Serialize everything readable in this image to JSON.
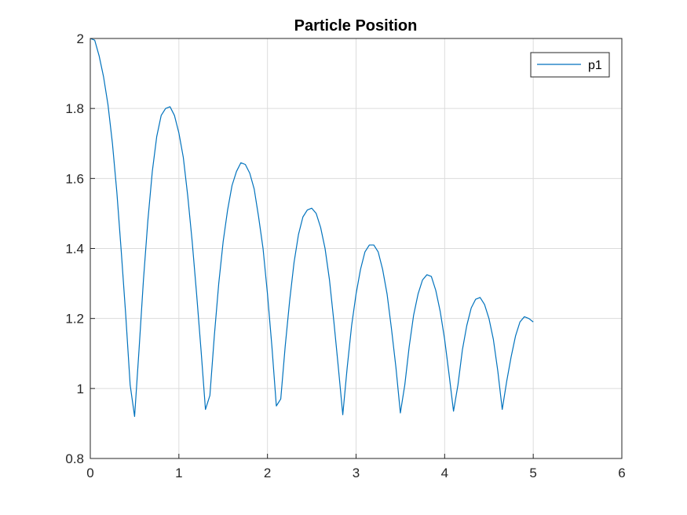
{
  "chart_data": {
    "type": "line",
    "title": "Particle Position",
    "xlabel": "",
    "ylabel": "",
    "xlim": [
      0,
      6
    ],
    "ylim": [
      0.8,
      2
    ],
    "xticks": [
      "0",
      "1",
      "2",
      "3",
      "4",
      "5",
      "6"
    ],
    "yticks": [
      "0.8",
      "1",
      "1.2",
      "1.4",
      "1.6",
      "1.8",
      "2"
    ],
    "grid": true,
    "legend": {
      "position": "top-right",
      "entries": [
        "p1"
      ]
    },
    "series": [
      {
        "name": "p1",
        "color": "#0072BD",
        "points": [
          [
            0.0,
            2.0
          ],
          [
            0.05,
            1.995
          ],
          [
            0.1,
            1.95
          ],
          [
            0.15,
            1.89
          ],
          [
            0.2,
            1.81
          ],
          [
            0.25,
            1.7
          ],
          [
            0.3,
            1.56
          ],
          [
            0.35,
            1.39
          ],
          [
            0.4,
            1.21
          ],
          [
            0.45,
            1.01
          ],
          [
            0.5,
            0.92
          ],
          [
            0.55,
            1.11
          ],
          [
            0.6,
            1.31
          ],
          [
            0.65,
            1.48
          ],
          [
            0.7,
            1.62
          ],
          [
            0.75,
            1.72
          ],
          [
            0.8,
            1.78
          ],
          [
            0.85,
            1.8
          ],
          [
            0.9,
            1.805
          ],
          [
            0.95,
            1.78
          ],
          [
            1.0,
            1.73
          ],
          [
            1.05,
            1.66
          ],
          [
            1.1,
            1.55
          ],
          [
            1.15,
            1.42
          ],
          [
            1.2,
            1.27
          ],
          [
            1.25,
            1.11
          ],
          [
            1.3,
            0.94
          ],
          [
            1.35,
            0.98
          ],
          [
            1.4,
            1.15
          ],
          [
            1.45,
            1.3
          ],
          [
            1.5,
            1.42
          ],
          [
            1.55,
            1.51
          ],
          [
            1.6,
            1.58
          ],
          [
            1.65,
            1.62
          ],
          [
            1.7,
            1.645
          ],
          [
            1.75,
            1.64
          ],
          [
            1.8,
            1.615
          ],
          [
            1.85,
            1.57
          ],
          [
            1.9,
            1.49
          ],
          [
            1.95,
            1.4
          ],
          [
            2.0,
            1.27
          ],
          [
            2.05,
            1.12
          ],
          [
            2.1,
            0.95
          ],
          [
            2.15,
            0.97
          ],
          [
            2.2,
            1.12
          ],
          [
            2.25,
            1.25
          ],
          [
            2.3,
            1.36
          ],
          [
            2.35,
            1.44
          ],
          [
            2.4,
            1.49
          ],
          [
            2.45,
            1.51
          ],
          [
            2.5,
            1.515
          ],
          [
            2.55,
            1.5
          ],
          [
            2.6,
            1.46
          ],
          [
            2.65,
            1.4
          ],
          [
            2.7,
            1.31
          ],
          [
            2.75,
            1.19
          ],
          [
            2.8,
            1.06
          ],
          [
            2.85,
            0.925
          ],
          [
            2.9,
            1.06
          ],
          [
            2.95,
            1.18
          ],
          [
            3.0,
            1.27
          ],
          [
            3.05,
            1.34
          ],
          [
            3.1,
            1.39
          ],
          [
            3.15,
            1.41
          ],
          [
            3.2,
            1.41
          ],
          [
            3.25,
            1.39
          ],
          [
            3.3,
            1.34
          ],
          [
            3.35,
            1.27
          ],
          [
            3.4,
            1.17
          ],
          [
            3.45,
            1.06
          ],
          [
            3.5,
            0.93
          ],
          [
            3.55,
            1.01
          ],
          [
            3.6,
            1.12
          ],
          [
            3.65,
            1.21
          ],
          [
            3.7,
            1.27
          ],
          [
            3.75,
            1.31
          ],
          [
            3.8,
            1.325
          ],
          [
            3.85,
            1.32
          ],
          [
            3.9,
            1.28
          ],
          [
            3.95,
            1.22
          ],
          [
            4.0,
            1.14
          ],
          [
            4.05,
            1.04
          ],
          [
            4.1,
            0.935
          ],
          [
            4.15,
            1.01
          ],
          [
            4.2,
            1.11
          ],
          [
            4.25,
            1.18
          ],
          [
            4.3,
            1.23
          ],
          [
            4.35,
            1.255
          ],
          [
            4.4,
            1.26
          ],
          [
            4.45,
            1.24
          ],
          [
            4.5,
            1.2
          ],
          [
            4.55,
            1.14
          ],
          [
            4.6,
            1.05
          ],
          [
            4.65,
            0.94
          ],
          [
            4.7,
            1.02
          ],
          [
            4.75,
            1.09
          ],
          [
            4.8,
            1.15
          ],
          [
            4.85,
            1.19
          ],
          [
            4.9,
            1.205
          ],
          [
            4.95,
            1.2
          ],
          [
            5.0,
            1.19
          ]
        ]
      }
    ]
  }
}
